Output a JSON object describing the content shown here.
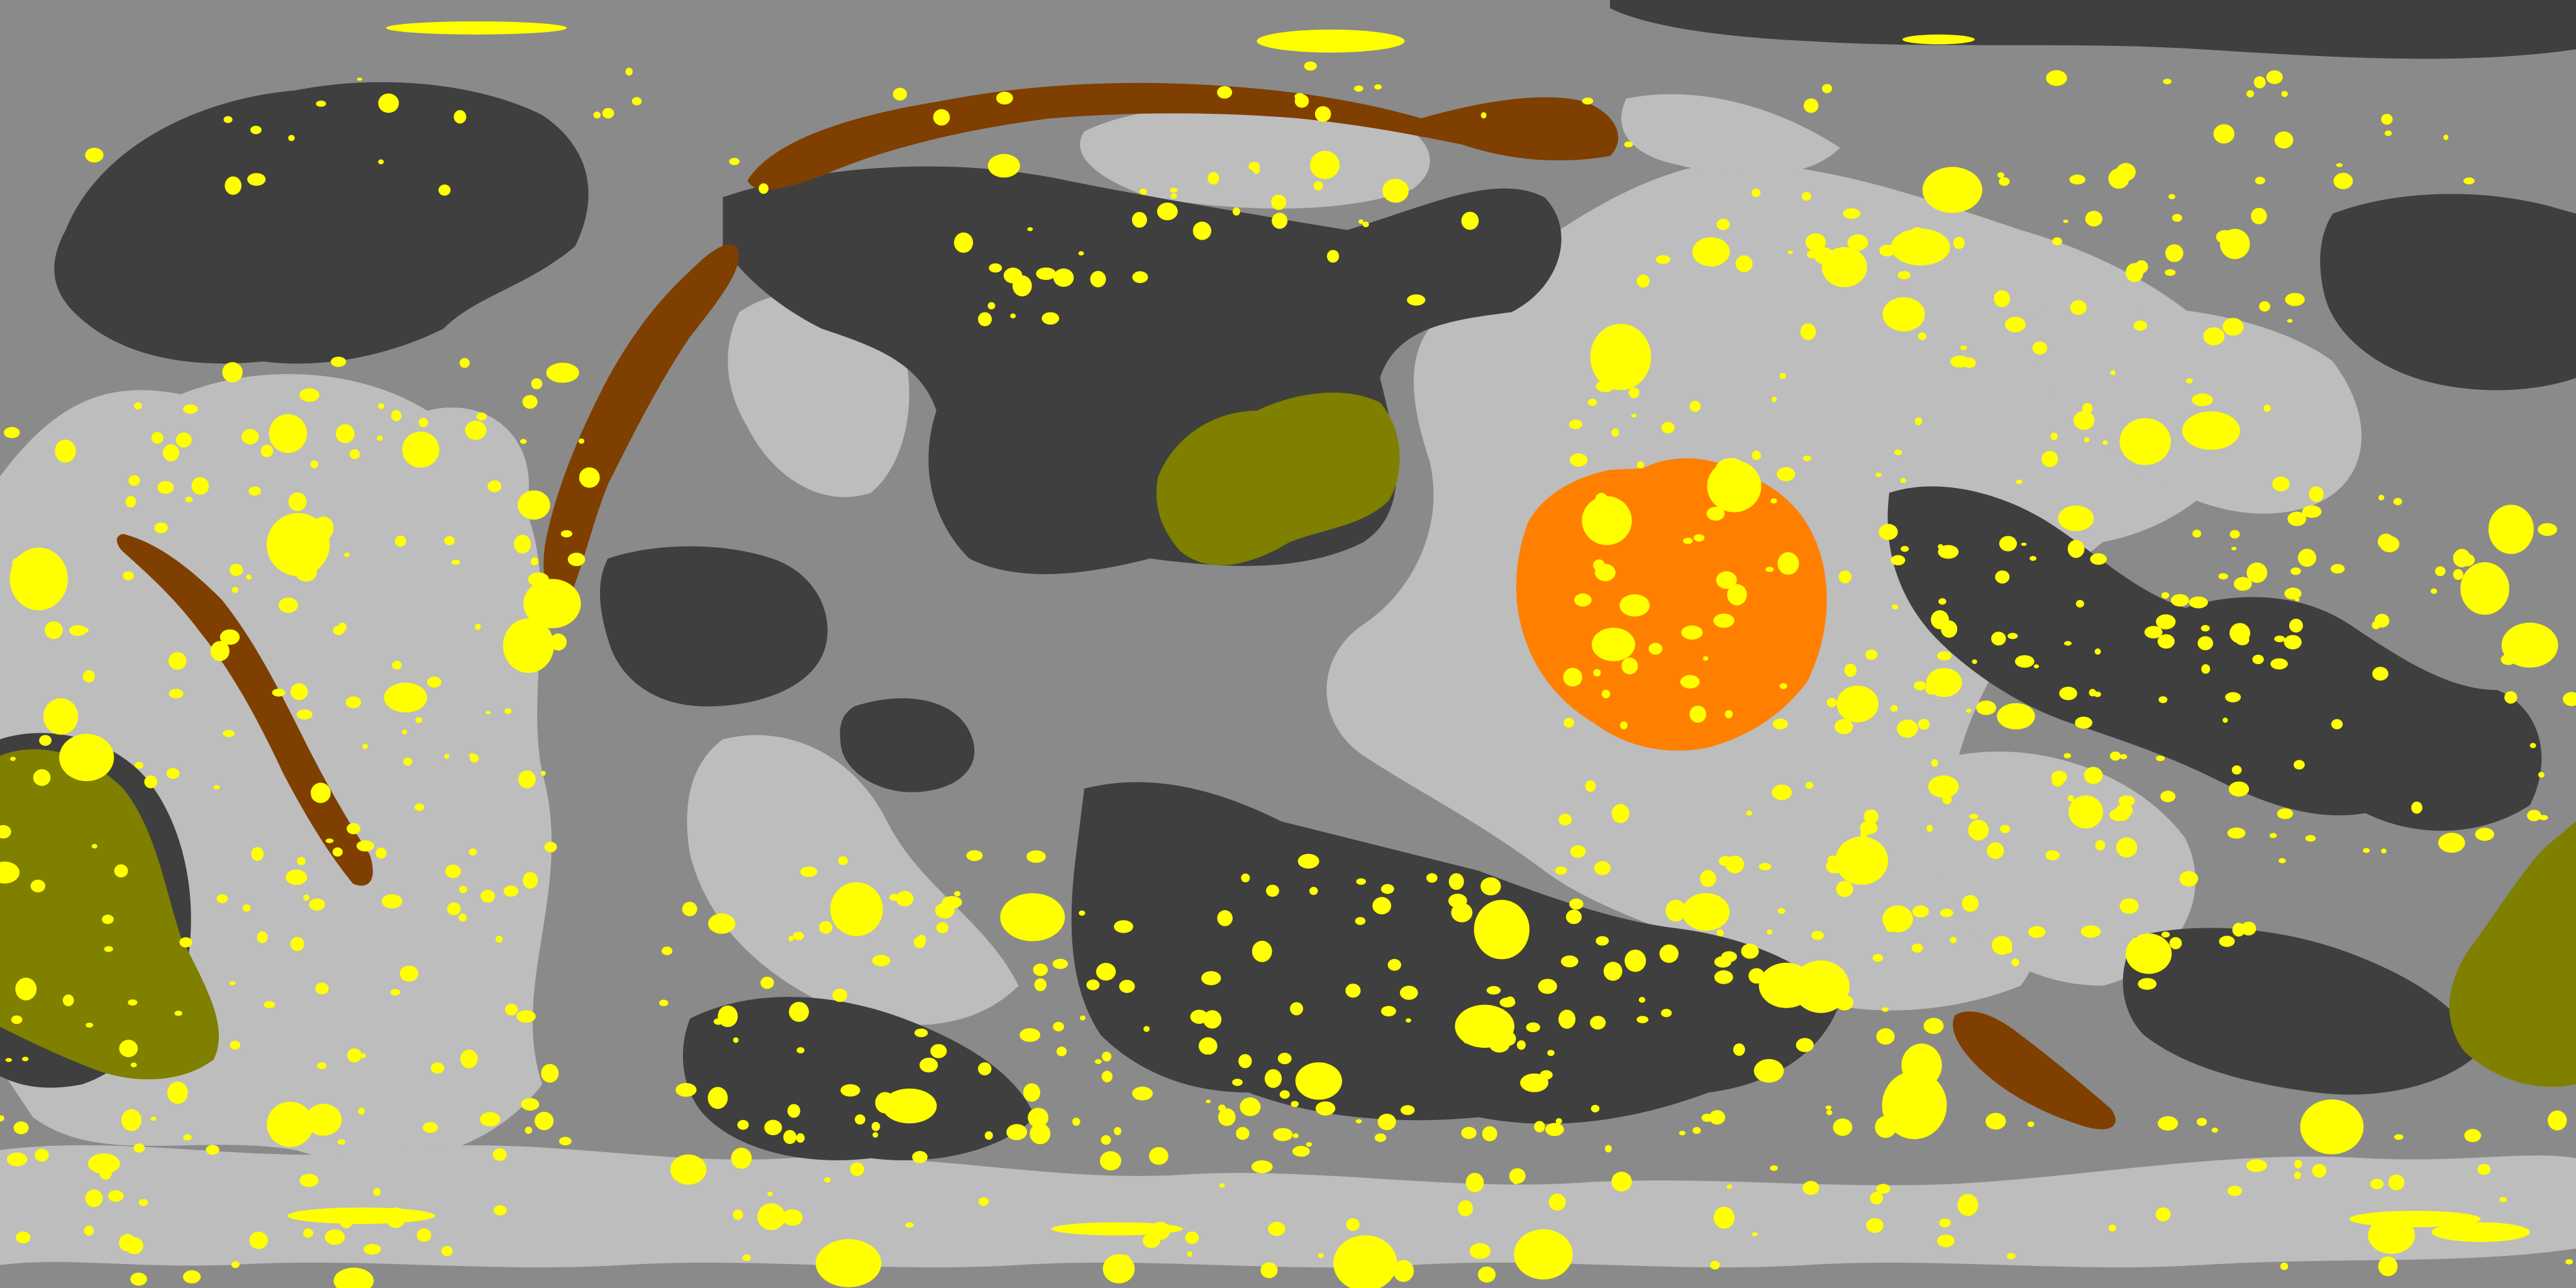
{
  "map": {
    "projection": "equirectangular",
    "colors": {
      "background": "#8a8a8a",
      "dark_unit": "#3f3f3f",
      "light_unit": "#bdbdbd",
      "crater": "#ffff00",
      "ridge": "#7f3f00",
      "olive_unit": "#7f7f00",
      "impact_basin": "#ff8000"
    },
    "units": [
      {
        "name": "background-plains",
        "color_key": "background"
      },
      {
        "name": "dark-unit",
        "color_key": "dark_unit"
      },
      {
        "name": "light-unit",
        "color_key": "light_unit"
      },
      {
        "name": "crater-deposits",
        "color_key": "crater"
      },
      {
        "name": "ridge-deposits",
        "color_key": "ridge"
      },
      {
        "name": "olive-unit",
        "color_key": "olive_unit"
      },
      {
        "name": "impact-basin",
        "color_key": "impact_basin"
      }
    ],
    "text": []
  }
}
